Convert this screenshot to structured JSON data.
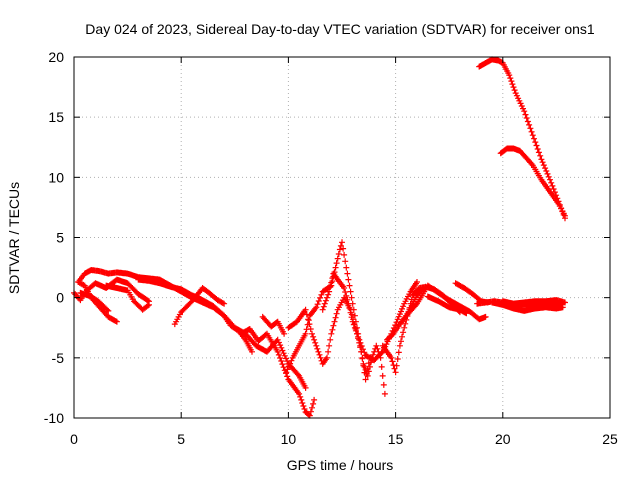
{
  "chart_data": {
    "type": "scatter",
    "title": "Day 024 of 2023, Sidereal Day-to-day VTEC variation (SDTVAR) for receiver ons1",
    "xlabel": "GPS time / hours",
    "ylabel": "SDTVAR / TECUs",
    "xlim": [
      0,
      25
    ],
    "ylim": [
      -10,
      20
    ],
    "xticks": [
      0,
      5,
      10,
      15,
      20,
      25
    ],
    "yticks": [
      -10,
      -5,
      0,
      5,
      10,
      15,
      20
    ],
    "grid": true,
    "marker": "+",
    "series": [
      {
        "name": "ons1",
        "color": "#ff0000",
        "tracks": [
          [
            [
              0.2,
              1.3
            ],
            [
              0.5,
              2.0
            ],
            [
              0.8,
              2.3
            ],
            [
              1.2,
              2.2
            ],
            [
              1.6,
              2.0
            ],
            [
              2.0,
              2.1
            ],
            [
              2.5,
              2.0
            ],
            [
              3.0,
              1.7
            ],
            [
              3.5,
              1.6
            ],
            [
              4.0,
              1.5
            ],
            [
              4.5,
              1.0
            ],
            [
              5.0,
              0.5
            ],
            [
              5.5,
              0.0
            ],
            [
              6.0,
              -0.4
            ],
            [
              6.5,
              -0.8
            ],
            [
              7.0,
              -1.5
            ],
            [
              7.5,
              -2.5
            ],
            [
              8.0,
              -3.0
            ],
            [
              8.5,
              -4.0
            ],
            [
              9.0,
              -4.5
            ],
            [
              9.5,
              -3.5
            ],
            [
              10.0,
              -5.5
            ],
            [
              10.5,
              -6.5
            ],
            [
              10.8,
              -7.5
            ]
          ],
          [
            [
              0.2,
              1.3
            ],
            [
              0.5,
              1.0
            ],
            [
              0.8,
              0.0
            ],
            [
              1.2,
              -0.8
            ],
            [
              1.6,
              -1.6
            ],
            [
              2.0,
              -2.0
            ]
          ],
          [
            [
              0.3,
              0.4
            ],
            [
              0.8,
              0.1
            ],
            [
              1.2,
              -0.4
            ],
            [
              1.6,
              -1.1
            ]
          ],
          [
            [
              0.0,
              0.4
            ],
            [
              0.3,
              -0.2
            ],
            [
              0.6,
              0.6
            ],
            [
              1.0,
              1.2
            ],
            [
              1.5,
              0.8
            ],
            [
              2.0,
              1.5
            ],
            [
              2.5,
              1.2
            ],
            [
              3.0,
              0.3
            ],
            [
              3.5,
              -0.3
            ]
          ],
          [
            [
              1.5,
              1.0
            ],
            [
              2.0,
              0.8
            ],
            [
              2.5,
              0.6
            ],
            [
              2.8,
              -0.3
            ],
            [
              3.2,
              -1.0
            ],
            [
              3.5,
              -0.6
            ]
          ],
          [
            [
              3.0,
              1.5
            ],
            [
              3.5,
              1.4
            ],
            [
              4.0,
              1.2
            ],
            [
              4.5,
              0.9
            ],
            [
              5.0,
              0.7
            ],
            [
              5.5,
              0.2
            ],
            [
              6.0,
              -0.2
            ],
            [
              6.5,
              -0.7
            ],
            [
              7.0,
              -1.5
            ],
            [
              7.3,
              -2.3
            ],
            [
              7.7,
              -2.8
            ],
            [
              8.0,
              -3.5
            ],
            [
              8.3,
              -4.5
            ]
          ],
          [
            [
              4.7,
              -2.2
            ],
            [
              5.0,
              -1.2
            ],
            [
              5.5,
              -0.3
            ],
            [
              6.0,
              0.8
            ],
            [
              6.3,
              0.4
            ],
            [
              6.7,
              -0.2
            ],
            [
              7.0,
              -0.5
            ]
          ],
          [
            [
              7.8,
              -3.0
            ],
            [
              8.2,
              -2.6
            ],
            [
              8.6,
              -3.6
            ],
            [
              9.0,
              -3.0
            ],
            [
              9.5,
              -4.5
            ],
            [
              10.0,
              -6.8
            ],
            [
              10.5,
              -8.0
            ],
            [
              10.8,
              -9.5
            ],
            [
              11.0,
              -9.8
            ],
            [
              11.2,
              -8.5
            ]
          ],
          [
            [
              8.8,
              -1.6
            ],
            [
              9.2,
              -2.4
            ],
            [
              9.5,
              -2.0
            ],
            [
              9.8,
              -3.0
            ]
          ],
          [
            [
              9.9,
              -6.2
            ],
            [
              10.2,
              -5.0
            ],
            [
              10.5,
              -4.0
            ],
            [
              10.8,
              -3.0
            ],
            [
              11.0,
              -1.5
            ],
            [
              11.3,
              -0.8
            ],
            [
              11.6,
              0.5
            ],
            [
              12.0,
              1.0
            ],
            [
              12.2,
              2.5
            ],
            [
              12.4,
              4.0
            ],
            [
              12.5,
              4.6
            ],
            [
              12.7,
              2.5
            ],
            [
              12.9,
              0.5
            ],
            [
              13.1,
              -1.5
            ],
            [
              13.3,
              -3.5
            ],
            [
              13.5,
              -5.5
            ],
            [
              13.7,
              -6.5
            ],
            [
              13.9,
              -5.0
            ],
            [
              14.1,
              -4.0
            ],
            [
              14.3,
              -5.0
            ],
            [
              14.5,
              -8.0
            ]
          ],
          [
            [
              10.0,
              -2.5
            ],
            [
              10.4,
              -2.0
            ],
            [
              10.8,
              -1.0
            ],
            [
              11.1,
              -3.0
            ],
            [
              11.4,
              -4.5
            ],
            [
              11.6,
              -5.5
            ],
            [
              11.8,
              -5.0
            ],
            [
              12.0,
              -3.0
            ],
            [
              12.3,
              -1.0
            ],
            [
              12.6,
              0.0
            ],
            [
              12.9,
              -1.0
            ],
            [
              13.2,
              -3.0
            ],
            [
              13.4,
              -4.5
            ],
            [
              13.6,
              -6.8
            ],
            [
              13.8,
              -5.0
            ]
          ],
          [
            [
              11.6,
              -1.0
            ],
            [
              11.9,
              0.5
            ],
            [
              12.1,
              2.0
            ],
            [
              12.3,
              1.5
            ],
            [
              12.6,
              0.8
            ],
            [
              12.8,
              -0.5
            ],
            [
              13.0,
              -2.0
            ],
            [
              13.3,
              -3.5
            ],
            [
              13.6,
              -4.8
            ],
            [
              14.0,
              -5.2
            ],
            [
              14.4,
              -4.5
            ],
            [
              14.8,
              -3.0
            ],
            [
              15.1,
              -1.8
            ],
            [
              15.4,
              -0.5
            ],
            [
              15.7,
              0.5
            ],
            [
              16.0,
              1.3
            ]
          ],
          [
            [
              14.4,
              -4.0
            ],
            [
              14.8,
              -5.0
            ],
            [
              15.0,
              -6.2
            ],
            [
              15.2,
              -4.0
            ],
            [
              15.4,
              -2.5
            ],
            [
              15.6,
              -1.2
            ],
            [
              15.8,
              0.2
            ],
            [
              16.1,
              0.8
            ],
            [
              16.4,
              0.9
            ],
            [
              16.8,
              0.7
            ],
            [
              17.2,
              0.2
            ],
            [
              17.6,
              -0.5
            ],
            [
              18.0,
              -1.2
            ]
          ],
          [
            [
              14.6,
              -3.5
            ],
            [
              14.9,
              -3.0
            ],
            [
              15.2,
              -2.2
            ],
            [
              15.5,
              -1.5
            ],
            [
              15.8,
              -0.5
            ],
            [
              16.0,
              0.2
            ],
            [
              16.3,
              0.8
            ]
          ],
          [
            [
              15.5,
              -1.5
            ],
            [
              16.0,
              -0.5
            ],
            [
              16.5,
              1.0
            ],
            [
              17.0,
              0.4
            ],
            [
              17.5,
              -0.2
            ],
            [
              18.0,
              -0.7
            ],
            [
              18.5,
              -1.2
            ],
            [
              18.9,
              -1.8
            ],
            [
              19.2,
              -1.6
            ]
          ],
          [
            [
              16.5,
              0.1
            ],
            [
              17.0,
              -0.3
            ],
            [
              17.5,
              -0.8
            ],
            [
              18.0,
              -1.0
            ],
            [
              18.3,
              -1.3
            ]
          ],
          [
            [
              17.8,
              1.2
            ],
            [
              18.2,
              0.8
            ],
            [
              18.6,
              0.3
            ],
            [
              19.0,
              -0.3
            ],
            [
              19.3,
              -0.4
            ]
          ],
          [
            [
              18.8,
              -0.5
            ],
            [
              19.2,
              -0.4
            ],
            [
              19.6,
              -0.3
            ],
            [
              20.0,
              -0.4
            ],
            [
              20.5,
              -0.5
            ],
            [
              21.0,
              -0.6
            ],
            [
              21.5,
              -0.5
            ],
            [
              22.0,
              -0.6
            ],
            [
              22.5,
              -0.6
            ],
            [
              22.8,
              -0.5
            ]
          ],
          [
            [
              19.5,
              -0.4
            ],
            [
              20.0,
              -0.6
            ],
            [
              20.5,
              -0.9
            ],
            [
              21.0,
              -1.1
            ],
            [
              21.5,
              -0.9
            ],
            [
              22.0,
              -0.8
            ],
            [
              22.5,
              -0.9
            ],
            [
              22.8,
              -0.8
            ]
          ],
          [
            [
              20.0,
              -0.3
            ],
            [
              20.5,
              -0.5
            ],
            [
              21.0,
              -0.4
            ],
            [
              21.5,
              -0.3
            ],
            [
              22.0,
              -0.3
            ],
            [
              22.5,
              -0.2
            ],
            [
              22.9,
              -0.4
            ]
          ],
          [
            [
              18.9,
              19.2
            ],
            [
              19.2,
              19.5
            ],
            [
              19.5,
              19.8
            ],
            [
              19.8,
              19.7
            ],
            [
              20.0,
              19.5
            ],
            [
              20.3,
              18.5
            ],
            [
              20.6,
              17.0
            ],
            [
              21.0,
              15.5
            ],
            [
              21.4,
              13.5
            ],
            [
              21.8,
              11.5
            ],
            [
              22.2,
              9.8
            ],
            [
              22.6,
              8.0
            ],
            [
              22.9,
              6.6
            ]
          ],
          [
            [
              19.9,
              12.0
            ],
            [
              20.2,
              12.4
            ],
            [
              20.5,
              12.4
            ],
            [
              20.8,
              12.2
            ],
            [
              21.1,
              11.6
            ],
            [
              21.4,
              11.0
            ],
            [
              21.8,
              9.8
            ],
            [
              22.2,
              8.8
            ],
            [
              22.6,
              7.8
            ],
            [
              22.9,
              6.8
            ]
          ]
        ]
      }
    ]
  }
}
